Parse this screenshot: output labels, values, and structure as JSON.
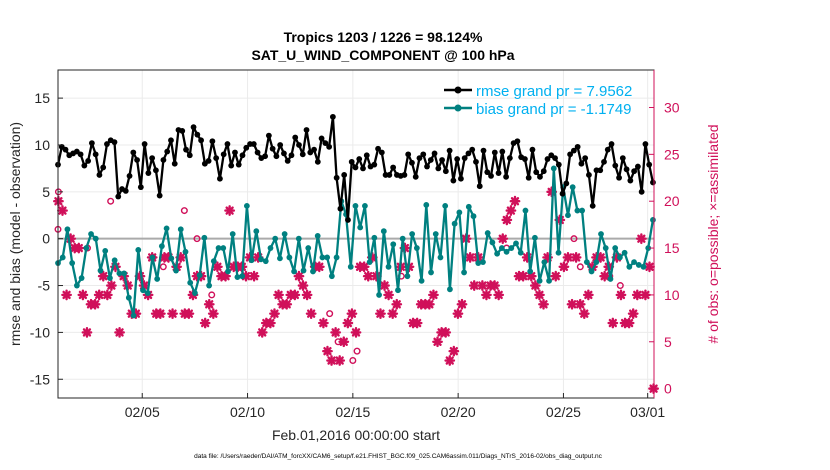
{
  "chart_data": {
    "type": "line",
    "title_line1": "Tropics 1203 / 1226 = 98.124%",
    "title_line2": "SAT_U_WIND_COMPONENT @ 100 hPa",
    "xlabel": "Feb.01,2016 00:00:00 start",
    "ylabel_left": "rmse and bias (model - observation)",
    "ylabel_right": "# of obs: o=possible; ×=assimilated",
    "footer": "data file: /Users/raeder/DAI/ATM_forcXX/CAM6_setup/f.e21.FHIST_BGC.f09_025.CAM6assim.011/Diags_NTrS_2016-02/obs_diag_output.nc",
    "xlim": [
      1,
      29.3
    ],
    "ylim_left": [
      -17,
      18
    ],
    "ylim_right": [
      -1,
      34
    ],
    "x_ticks": [
      {
        "value": 5,
        "label": "02/05"
      },
      {
        "value": 10,
        "label": "02/10"
      },
      {
        "value": 15,
        "label": "02/15"
      },
      {
        "value": 20,
        "label": "02/20"
      },
      {
        "value": 25,
        "label": "02/25"
      },
      {
        "value": 29,
        "label": "03/01"
      }
    ],
    "y_ticks_left": [
      "15",
      "10",
      "5",
      "0",
      "-5",
      "-10",
      "-15"
    ],
    "y_ticks_left_values": [
      15,
      10,
      5,
      0,
      -5,
      -10,
      -15
    ],
    "y_ticks_right": [
      "30",
      "25",
      "20",
      "15",
      "10",
      "5",
      "0"
    ],
    "y_ticks_right_values": [
      30,
      25,
      20,
      15,
      10,
      5,
      0
    ],
    "legend": [
      {
        "label": "rmse grand pr = 7.9562",
        "color": "#00b0f0",
        "series_color": "#000000"
      },
      {
        "label": "bias grand pr = -1.1749",
        "color": "#00b0f0",
        "series_color": "#008080"
      }
    ],
    "colors": {
      "rmse": "#000000",
      "bias": "#008080",
      "obs": "#d0105a",
      "zero": "#aaaaaa",
      "legend_text": "#00b0f0"
    },
    "x_start": 1.0,
    "x_step": 0.25,
    "series": [
      {
        "name": "rmse",
        "values": [
          7.9,
          9.8,
          9.5,
          8.9,
          9.1,
          9.3,
          9.0,
          7.8,
          8.3,
          10.2,
          9.0,
          6.8,
          7.6,
          10.1,
          10.5,
          10.3,
          4.5,
          5.3,
          5.1,
          6.7,
          9.2,
          8.4,
          5.5,
          10.1,
          7.0,
          8.6,
          7.3,
          4.6,
          8.4,
          9.3,
          10.5,
          8.0,
          11.6,
          11.5,
          9.5,
          8.9,
          11.9,
          11.1,
          10.5,
          8.0,
          8.3,
          10.4,
          8.6,
          6.4,
          9.0,
          10.1,
          7.8,
          9.2,
          7.9,
          8.9,
          9.7,
          10.1,
          10.1,
          9.2,
          8.6,
          8.8,
          11.0,
          9.6,
          8.8,
          10.0,
          9.1,
          8.3,
          8.9,
          10.8,
          10.0,
          9.0,
          11.6,
          9.2,
          9.5,
          8.2,
          10.7,
          10.2,
          9.8,
          13.0,
          6.5,
          3.2,
          6.8,
          2.0,
          8.2,
          7.6,
          8.5,
          7.5,
          8.9,
          7.7,
          7.9,
          9.6,
          9.2,
          6.8,
          6.8,
          7.6,
          6.8,
          6.7,
          6.8,
          9.0,
          8.1,
          6.6,
          8.6,
          9.0,
          7.7,
          8.4,
          9.1,
          7.5,
          8.4,
          7.2,
          9.4,
          6.2,
          8.5,
          6.4,
          8.6,
          9.1,
          9.5,
          8.2,
          5.6,
          9.4,
          7.1,
          6.7,
          9.2,
          7.0,
          9.3,
          6.6,
          8.6,
          10.2,
          10.4,
          8.7,
          8.5,
          6.5,
          9.5,
          7.1,
          6.6,
          7.2,
          8.5,
          8.9,
          8.6,
          7.9,
          4.8,
          5.9,
          9.0,
          9.4,
          9.8,
          8.0,
          8.6,
          6.8,
          3.5,
          7.3,
          7.3,
          8.2,
          9.5,
          10.1,
          7.8,
          6.5,
          8.6,
          7.4,
          6.2,
          7.2,
          7.7,
          5.0,
          10.1,
          7.9,
          6.0
        ]
      },
      {
        "name": "bias",
        "values": [
          -2.6,
          -2.0,
          1.0,
          -2.6,
          -5.0,
          -4.2,
          -1.0,
          0.5,
          0.0,
          -3.4,
          -1.3,
          -4.2,
          -2.3,
          -3.7,
          -3.7,
          -6.3,
          -8.2,
          -1.2,
          -5.5,
          -5.8,
          -2.0,
          -4.3,
          -0.8,
          1.1,
          -2.1,
          -3.4,
          1.0,
          -1.4,
          -4.7,
          -5.8,
          -3.9,
          0.1,
          -5.0,
          -2.4,
          -1.0,
          -1.0,
          -3.5,
          0.5,
          -4.1,
          -4.0,
          3.5,
          -2.3,
          0.8,
          -2.2,
          -2.4,
          -1.0,
          0.0,
          -2.1,
          0.5,
          -2.0,
          -3.5,
          0.0,
          -3.4,
          -1.0,
          -3.5,
          0.3,
          -2.0,
          -2.0,
          -4.0,
          -2.0,
          4.0,
          2.6,
          -3.0,
          3.5,
          1.2,
          3.5,
          -2.5,
          0.1,
          -6.0,
          0.8,
          -3.0,
          -0.6,
          -5.5,
          0.0,
          -4.0,
          0.5,
          -1.0,
          -4.5,
          3.6,
          -3.6,
          0.5,
          -2.0,
          3.5,
          -5.4,
          1.6,
          2.8,
          -3.6,
          3.4,
          2.4,
          -2.6,
          -2.5,
          0.6,
          -0.4,
          -1.6,
          -1.0,
          -1.4,
          -1.0,
          -0.5,
          -1.5,
          3.0,
          -3.5,
          0.1,
          -4.5,
          -2.5,
          -4.5,
          7.5,
          -1.5,
          5.5,
          2.5,
          5.5,
          3.0,
          3.0,
          -2.5,
          -3.5,
          -2.5,
          0.5,
          -1.0,
          -4.3,
          -1.0,
          -2.0,
          -1.5,
          -3.0,
          -2.5,
          -2.8,
          -3.0,
          -1.0,
          2.0
        ]
      },
      {
        "name": "obs_assimilated",
        "values": [
          20,
          19,
          10,
          16,
          15,
          15,
          10,
          6,
          9,
          9,
          10,
          12,
          10,
          11,
          13,
          6,
          12,
          11,
          8,
          8,
          12,
          11,
          10,
          14,
          8,
          8,
          14,
          14,
          8,
          13,
          14,
          8,
          8,
          10,
          12,
          12,
          7,
          9,
          8,
          13,
          12,
          12,
          19,
          13,
          13,
          13,
          12,
          14,
          12,
          14,
          6,
          7,
          7,
          8,
          10,
          9,
          9,
          10,
          10,
          12,
          11,
          10,
          8,
          13,
          13,
          7,
          4,
          3,
          6,
          3,
          5,
          7,
          8,
          6,
          13,
          13,
          12,
          14,
          12,
          8,
          11,
          10,
          8,
          9,
          13,
          15,
          13,
          7,
          7,
          9,
          9,
          9,
          10,
          5,
          6,
          6,
          3,
          4,
          8,
          9,
          16,
          14,
          11,
          14,
          11,
          10,
          11,
          11,
          10,
          16,
          18,
          19,
          20,
          12,
          12,
          14,
          12,
          11,
          10,
          9,
          14,
          21,
          12,
          18,
          13,
          14,
          9,
          14,
          9,
          8,
          10,
          13,
          14,
          14,
          12,
          13,
          7,
          14,
          10,
          7,
          7,
          8,
          10,
          16,
          10,
          13,
          0
        ]
      },
      {
        "name": "obs_possible",
        "values": [
          21,
          17,
          15,
          20,
          14,
          13,
          19,
          16,
          10,
          8,
          5,
          3,
          4,
          12,
          15,
          16,
          13,
          12,
          11
        ]
      }
    ]
  }
}
